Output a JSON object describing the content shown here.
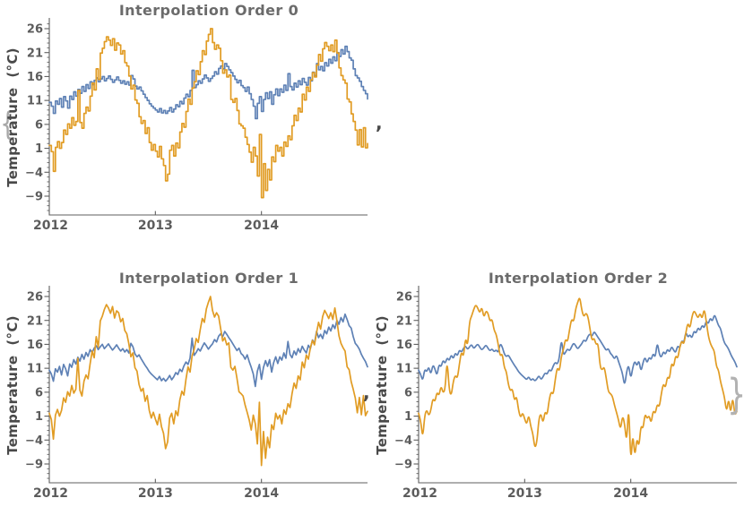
{
  "figure": {
    "open_brace": "{",
    "close_brace": "}",
    "separator": ","
  },
  "chart_data": {
    "type": "line",
    "layout": "three panels: top-left, bottom-left, bottom-right",
    "charts": [
      {
        "title": "Interpolation Order 0",
        "interpolation_order": 0
      },
      {
        "title": "Interpolation Order 1",
        "interpolation_order": 1
      },
      {
        "title": "Interpolation Order 2",
        "interpolation_order": 2
      }
    ],
    "shared": {
      "ylabel": "Temperature  (°C)",
      "xlabel": "",
      "x_ticks": [
        2012,
        2013,
        2014
      ],
      "x_tick_labels": [
        "2012",
        "2013",
        "2014"
      ],
      "y_ticks": [
        26,
        21,
        16,
        11,
        6,
        1,
        -4,
        -9
      ],
      "y_tick_labels": [
        "26",
        "21",
        "16",
        "11",
        "6",
        "1",
        "−4",
        "−9"
      ],
      "x_range": [
        2012,
        2015
      ],
      "y_range": [
        -12.9,
        28.2
      ],
      "grid": false,
      "legend": false,
      "x_start": 2012,
      "x_step_years": 0.0192308,
      "n_points": 157,
      "sampling": "weekly",
      "series": [
        {
          "name": "series-1-blue",
          "color": "#5e81b5",
          "values": [
            10.6,
            9.8,
            8.3,
            10.9,
            10.2,
            11.4,
            9.6,
            11.8,
            10.9,
            9.4,
            11.9,
            11.2,
            12.8,
            11.9,
            13.3,
            12.5,
            13.9,
            12.9,
            14.3,
            13.5,
            14.9,
            14.3,
            15.2,
            15.7,
            14.9,
            15.5,
            16.0,
            15.1,
            15.6,
            16.1,
            15.4,
            14.8,
            15.3,
            15.9,
            15.2,
            14.6,
            15.1,
            14.4,
            14.9,
            14.2,
            16.2,
            15.5,
            14.0,
            13.4,
            13.8,
            13.0,
            12.3,
            11.6,
            11.0,
            10.3,
            9.8,
            9.4,
            9.0,
            8.6,
            9.3,
            8.4,
            8.9,
            8.3,
            8.8,
            9.5,
            8.6,
            9.2,
            10.1,
            9.7,
            10.8,
            10.3,
            11.5,
            12.3,
            11.8,
            13.1,
            17.3,
            13.7,
            14.3,
            15.1,
            14.6,
            15.5,
            16.3,
            15.7,
            15.0,
            15.6,
            16.1,
            17.0,
            16.5,
            17.7,
            18.2,
            17.6,
            18.7,
            18.1,
            17.4,
            16.8,
            16.1,
            15.4,
            14.7,
            15.2,
            14.1,
            13.7,
            12.9,
            13.8,
            12.4,
            11.2,
            9.8,
            7.2,
            10.4,
            11.8,
            8.7,
            11.2,
            12.6,
            11.4,
            12.8,
            10.2,
            12.2,
            13.4,
            12.0,
            13.4,
            12.7,
            14.2,
            13.1,
            16.6,
            13.9,
            13.2,
            14.6,
            13.8,
            15.1,
            14.3,
            15.6,
            14.8,
            14.2,
            15.8,
            15.1,
            16.9,
            16.2,
            18.7,
            17.4,
            18.1,
            17.2,
            18.9,
            18.2,
            19.6,
            18.8,
            20.1,
            19.3,
            21.0,
            20.2,
            21.6,
            20.7,
            22.3,
            21.2,
            19.9,
            19.4,
            17.6,
            16.2,
            15.7,
            15.0,
            13.9,
            13.1,
            12.4,
            11.3
          ]
        },
        {
          "name": "series-2-orange",
          "color": "#e19c24",
          "values": [
            1.6,
            0.3,
            -3.8,
            1.2,
            2.4,
            1.0,
            2.2,
            4.8,
            3.9,
            6.1,
            5.2,
            7.4,
            5.8,
            6.6,
            13.1,
            6.4,
            5.2,
            8.3,
            9.6,
            8.8,
            11.9,
            14.6,
            13.2,
            17.6,
            15.4,
            20.9,
            21.9,
            23.3,
            24.3,
            23.6,
            22.5,
            23.9,
            21.5,
            23.0,
            22.6,
            20.7,
            21.4,
            18.9,
            18.2,
            16.1,
            13.4,
            14.2,
            11.1,
            10.4,
            7.6,
            6.2,
            6.8,
            4.1,
            5.3,
            2.2,
            0.6,
            1.8,
            0.4,
            -0.8,
            1.4,
            -1.2,
            -2.6,
            -5.8,
            -4.4,
            0.6,
            1.6,
            -0.6,
            2.1,
            1.1,
            4.4,
            6.2,
            5.4,
            8.7,
            11.3,
            10.2,
            13.6,
            14.9,
            17.2,
            16.4,
            19.1,
            21.4,
            20.6,
            23.4,
            24.8,
            26.0,
            23.1,
            21.7,
            22.6,
            21.9,
            19.3,
            16.7,
            17.4,
            15.9,
            16.3,
            11.2,
            10.6,
            11.4,
            8.9,
            6.1,
            5.7,
            5.2,
            3.3,
            1.8,
            0.2,
            -1.9,
            1.2,
            -0.6,
            -4.8,
            3.9,
            -9.3,
            -2.2,
            -7.8,
            -3.4,
            -5.6,
            -0.8,
            -1.8,
            1.6,
            0.4,
            1.2,
            -0.6,
            2.3,
            1.4,
            3.6,
            2.8,
            5.7,
            7.9,
            6.8,
            9.4,
            8.6,
            12.3,
            11.1,
            13.8,
            12.9,
            15.3,
            16.8,
            15.9,
            18.4,
            20.6,
            19.2,
            21.8,
            23.1,
            22.3,
            21.4,
            22.6,
            21.2,
            23.6,
            20.9,
            17.8,
            16.2,
            15.3,
            14.6,
            11.3,
            10.7,
            8.2,
            6.6,
            4.8,
            1.7,
            4.9,
            1.3,
            5.3,
            1.1,
            2.0
          ]
        }
      ]
    },
    "styles": {
      "axis_color": "#5f5f5f",
      "tick_label_color": "#5c5c5c",
      "title_color": "#6b6b6b",
      "axis_label_color": "#494949",
      "brace_color": "#a8a8a8",
      "separator_color": "#4a4a4a",
      "background": "#ffffff"
    }
  }
}
